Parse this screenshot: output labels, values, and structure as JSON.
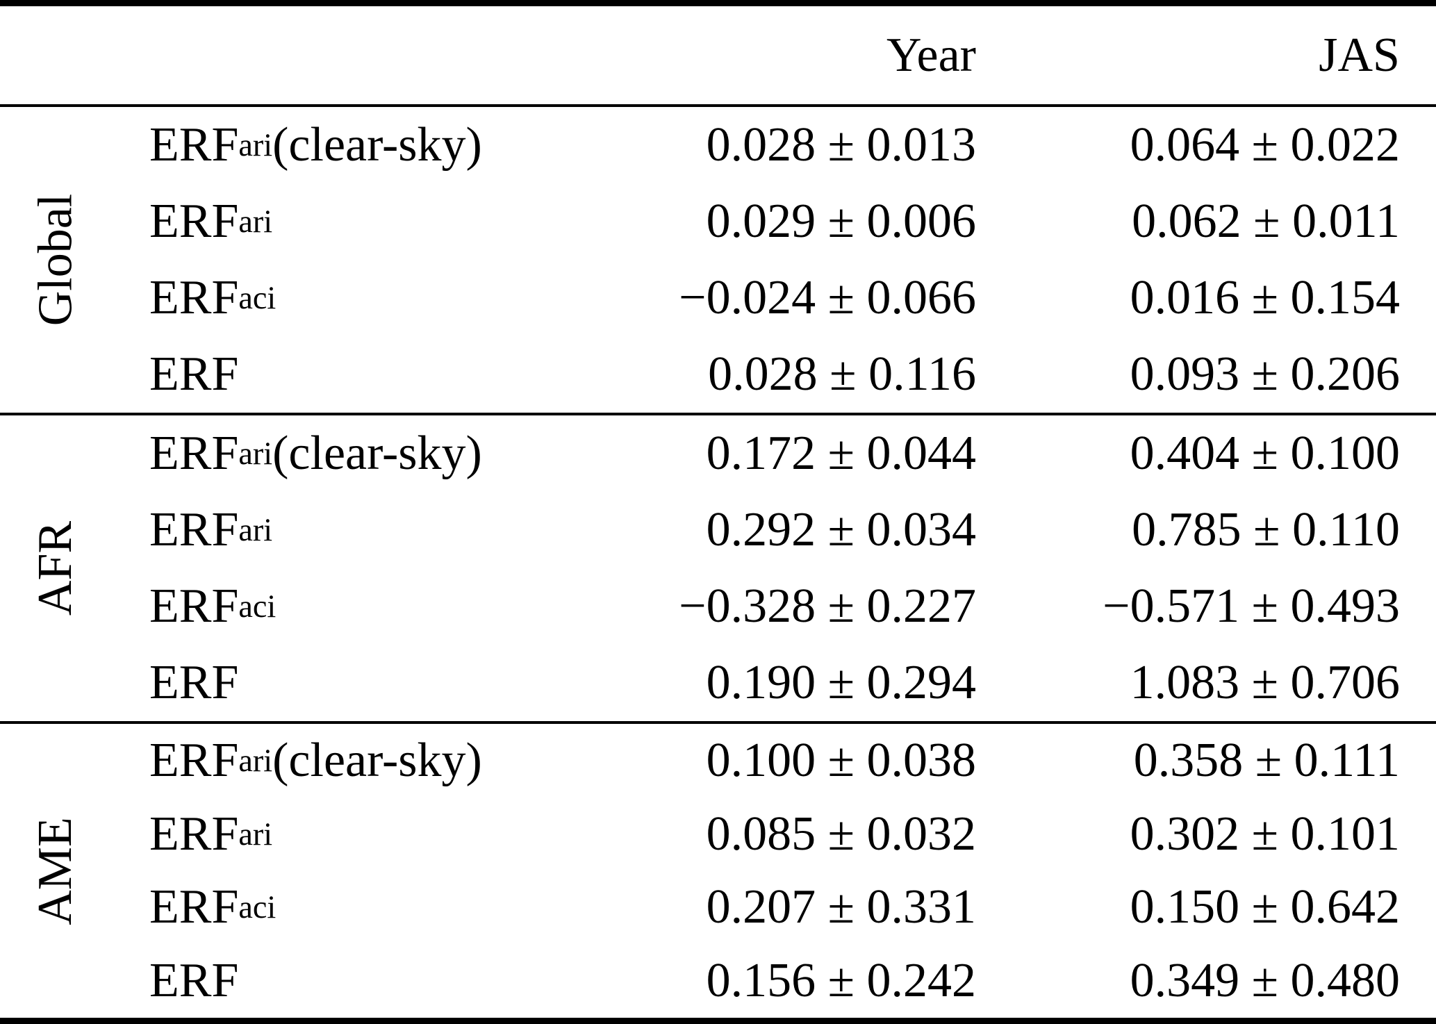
{
  "table": {
    "header": {
      "col1": "Year",
      "col2": "JAS"
    },
    "sections": [
      {
        "region": "Global",
        "rows": [
          {
            "main": "ERF",
            "sub": "ari",
            "suffix": " (clear-sky)",
            "year": "0.028 ± 0.013",
            "jas": "0.064 ± 0.022"
          },
          {
            "main": "ERF",
            "sub": "ari",
            "suffix": "",
            "year": "0.029 ± 0.006",
            "jas": "0.062 ± 0.011"
          },
          {
            "main": "ERF",
            "sub": "aci",
            "suffix": "",
            "year": "−0.024 ± 0.066",
            "jas": "0.016 ± 0.154"
          },
          {
            "main": "ERF",
            "sub": "",
            "suffix": "",
            "year": "0.028 ± 0.116",
            "jas": "0.093 ± 0.206"
          }
        ]
      },
      {
        "region": "AFR",
        "rows": [
          {
            "main": "ERF",
            "sub": "ari",
            "suffix": " (clear-sky)",
            "year": "0.172 ± 0.044",
            "jas": "0.404 ± 0.100"
          },
          {
            "main": "ERF",
            "sub": "ari",
            "suffix": "",
            "year": "0.292 ± 0.034",
            "jas": "0.785 ± 0.110"
          },
          {
            "main": "ERF",
            "sub": "aci",
            "suffix": "",
            "year": "−0.328 ± 0.227",
            "jas": "−0.571 ± 0.493"
          },
          {
            "main": "ERF",
            "sub": "",
            "suffix": "",
            "year": "0.190 ± 0.294",
            "jas": "1.083 ± 0.706"
          }
        ]
      },
      {
        "region": "AME",
        "rows": [
          {
            "main": "ERF",
            "sub": "ari",
            "suffix": " (clear-sky)",
            "year": "0.100 ± 0.038",
            "jas": "0.358 ± 0.111"
          },
          {
            "main": "ERF",
            "sub": "ari",
            "suffix": "",
            "year": "0.085 ± 0.032",
            "jas": "0.302 ± 0.101"
          },
          {
            "main": "ERF",
            "sub": "aci",
            "suffix": "",
            "year": "0.207 ± 0.331",
            "jas": "0.150 ± 0.642"
          },
          {
            "main": "ERF",
            "sub": "",
            "suffix": "",
            "year": "0.156 ± 0.242",
            "jas": "0.349 ± 0.480"
          }
        ]
      }
    ]
  }
}
